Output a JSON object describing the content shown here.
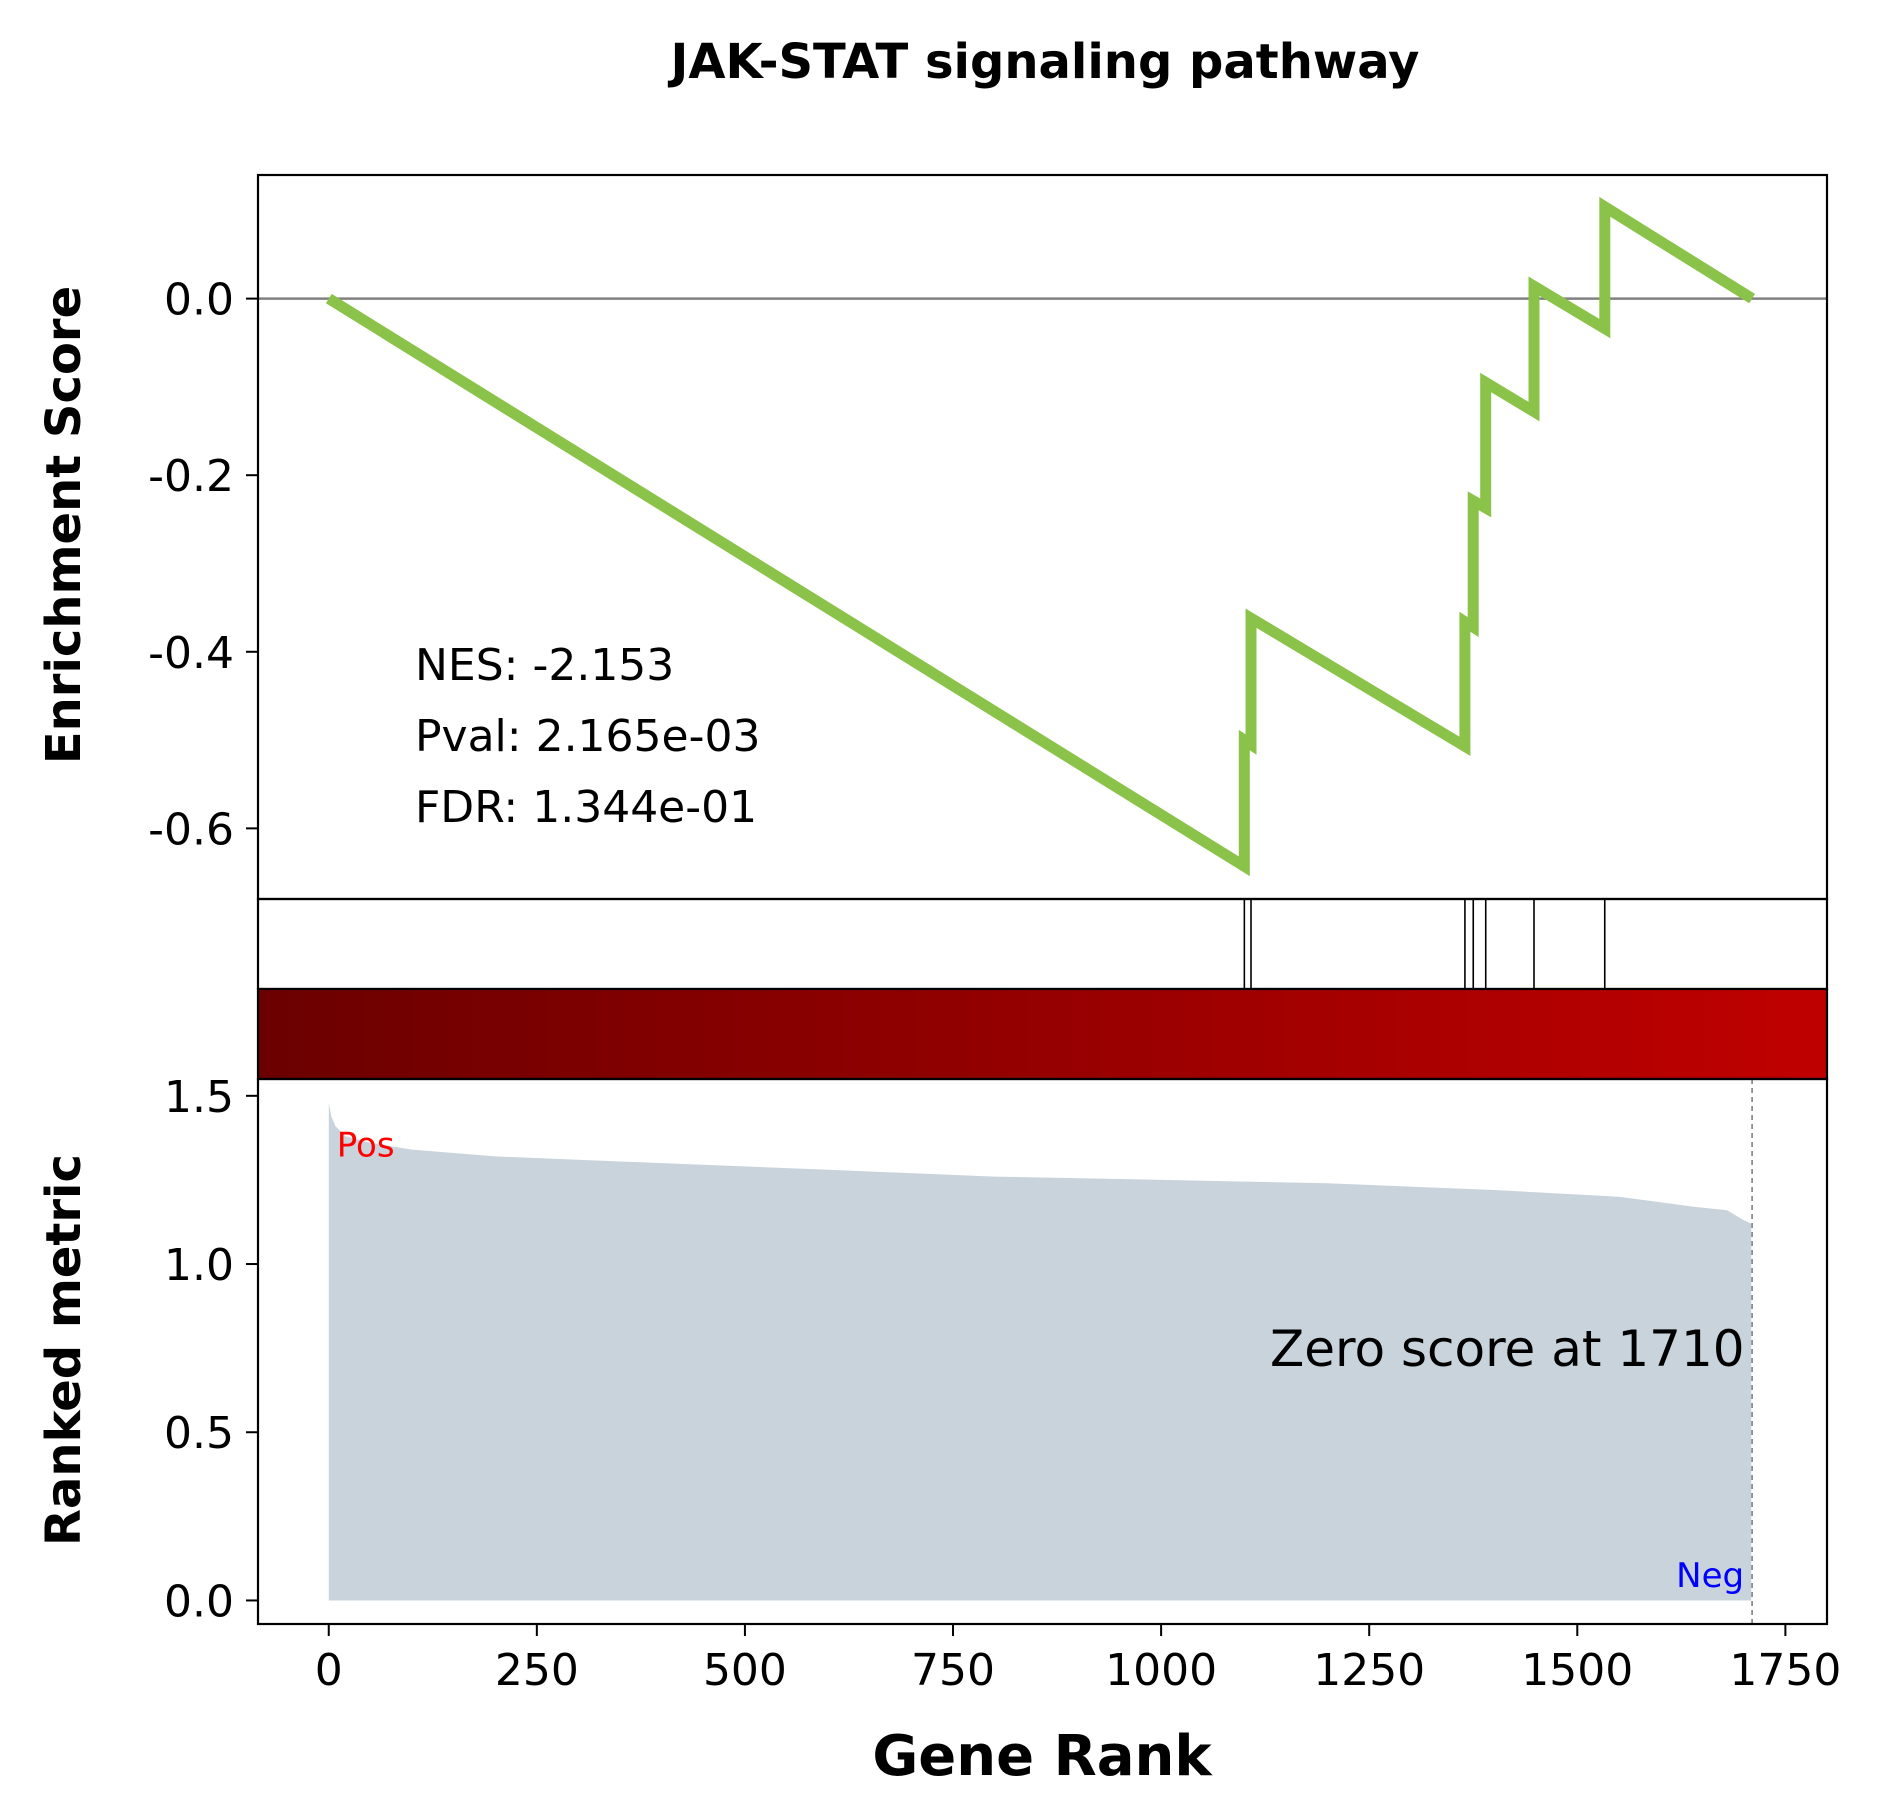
{
  "chart_data": {
    "type": "line",
    "title": "JAK-STAT signaling pathway",
    "top_panel": {
      "ylabel": "Enrichment Score",
      "ylim": [
        -0.68,
        0.14
      ],
      "yticks": [
        0.0,
        -0.2,
        -0.4,
        -0.6
      ],
      "ytick_labels": [
        "0.0",
        "-0.2",
        "-0.4",
        "-0.6"
      ],
      "zero_line": true,
      "line_color": "#8bc34a",
      "running_es": [
        {
          "x": 0,
          "y": 0.0
        },
        {
          "x": 1100,
          "y": -0.643
        },
        {
          "x": 1100,
          "y": -0.5
        },
        {
          "x": 1108,
          "y": -0.505
        },
        {
          "x": 1108,
          "y": -0.362
        },
        {
          "x": 1365,
          "y": -0.507
        },
        {
          "x": 1365,
          "y": -0.366
        },
        {
          "x": 1375,
          "y": -0.372
        },
        {
          "x": 1375,
          "y": -0.229
        },
        {
          "x": 1390,
          "y": -0.237
        },
        {
          "x": 1390,
          "y": -0.095
        },
        {
          "x": 1448,
          "y": -0.128
        },
        {
          "x": 1448,
          "y": 0.014
        },
        {
          "x": 1533,
          "y": -0.034
        },
        {
          "x": 1533,
          "y": 0.104
        },
        {
          "x": 1710,
          "y": 0.0
        }
      ],
      "stats": {
        "nes": "NES: -2.153",
        "pval": "Pval: 2.165e-03",
        "fdr": "FDR: 1.344e-01"
      }
    },
    "hits": [
      1100,
      1108,
      1365,
      1375,
      1390,
      1448,
      1533
    ],
    "colorbar": {
      "from": "#6b0000",
      "to": "#c00000"
    },
    "bottom_panel": {
      "ylabel": "Ranked metric",
      "xlabel": "Gene Rank",
      "ylim": [
        -0.07,
        1.55
      ],
      "yticks": [
        0.0,
        0.5,
        1.0,
        1.5
      ],
      "ytick_labels": [
        "0.0",
        "0.5",
        "1.0",
        "1.5"
      ],
      "xlim": [
        -85,
        1800
      ],
      "xticks": [
        0,
        250,
        500,
        750,
        1000,
        1250,
        1500,
        1750
      ],
      "xtick_labels": [
        "0",
        "250",
        "500",
        "750",
        "1000",
        "1250",
        "1500",
        "1750"
      ],
      "fill_color": "#c9d3dc",
      "ranked_metric": [
        {
          "x": 0,
          "y": 1.48
        },
        {
          "x": 3,
          "y": 1.44
        },
        {
          "x": 8,
          "y": 1.41
        },
        {
          "x": 20,
          "y": 1.38
        },
        {
          "x": 50,
          "y": 1.36
        },
        {
          "x": 100,
          "y": 1.34
        },
        {
          "x": 200,
          "y": 1.32
        },
        {
          "x": 400,
          "y": 1.3
        },
        {
          "x": 600,
          "y": 1.28
        },
        {
          "x": 800,
          "y": 1.26
        },
        {
          "x": 1000,
          "y": 1.25
        },
        {
          "x": 1200,
          "y": 1.24
        },
        {
          "x": 1400,
          "y": 1.22
        },
        {
          "x": 1550,
          "y": 1.2
        },
        {
          "x": 1640,
          "y": 1.17
        },
        {
          "x": 1680,
          "y": 1.16
        },
        {
          "x": 1700,
          "y": 1.13
        },
        {
          "x": 1709,
          "y": 1.12
        }
      ],
      "zero_score_rank": 1710,
      "zero_score_label": "Zero score at 1710",
      "pos_label": "Pos",
      "neg_label": "Neg",
      "pos_color": "#ff0000",
      "neg_color": "#0000ff"
    }
  }
}
